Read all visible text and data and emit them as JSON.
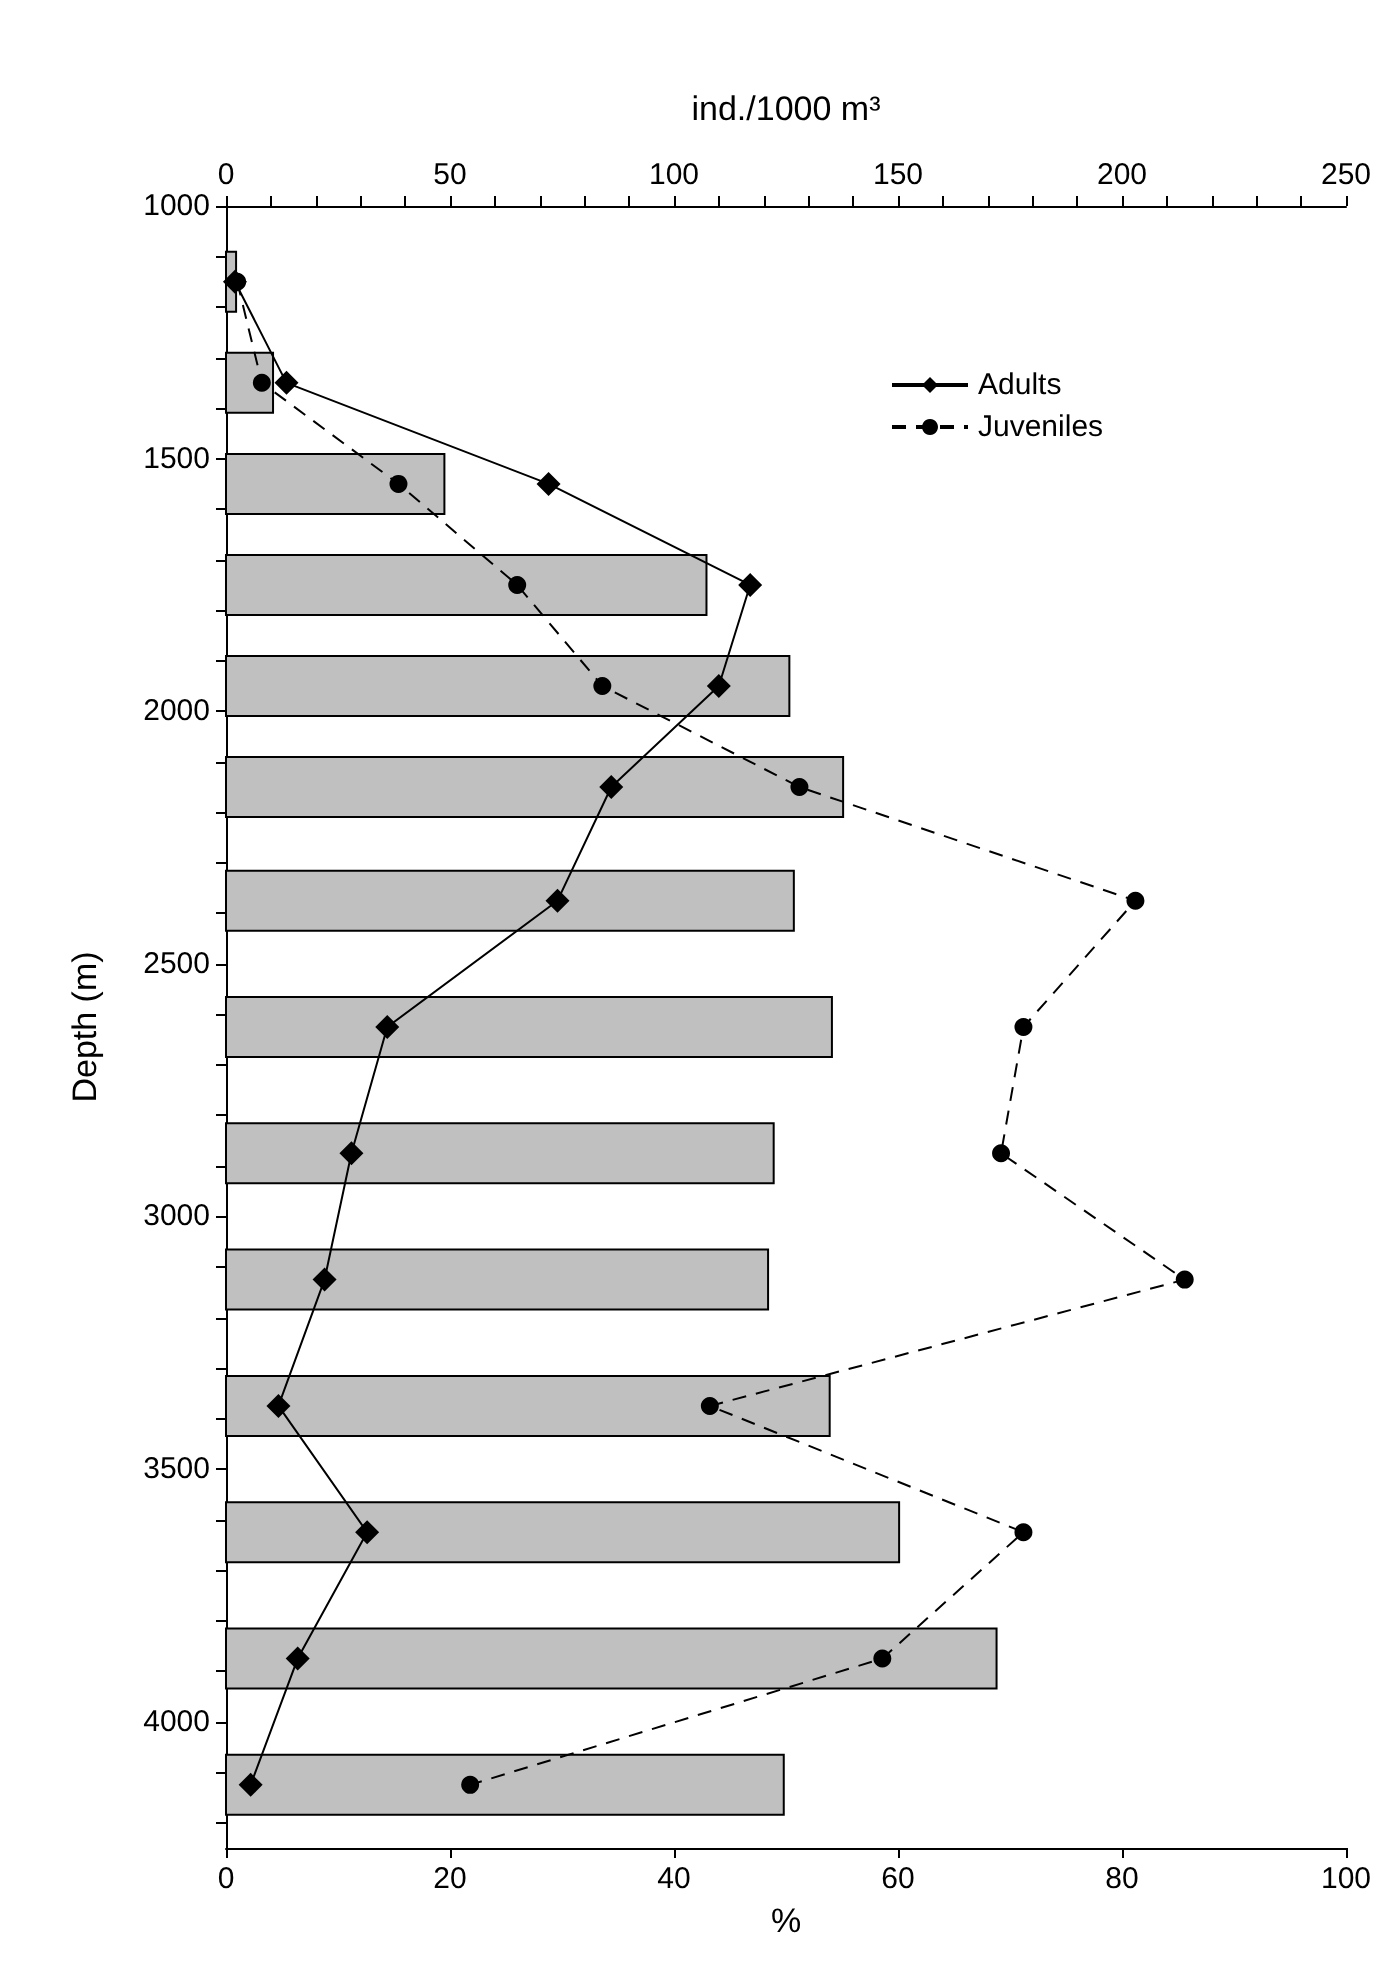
{
  "chart_data": {
    "type": "bar",
    "orientation": "horizontal",
    "xlabel": "%",
    "x2label": "ind./1000 m³",
    "ylabel": "Depth (m)",
    "x": [
      1150,
      1350,
      1550,
      1750,
      1950,
      2150,
      2375,
      2625,
      2875,
      3125,
      3375,
      3625,
      3875,
      4125
    ],
    "xlim": [
      0,
      100
    ],
    "xticks": [
      0,
      20,
      40,
      60,
      80,
      100
    ],
    "x2lim": [
      0,
      250
    ],
    "x2ticks": [
      0,
      {
        "value": 10,
        "label": null
      },
      {
        "value": 20,
        "label": null
      },
      {
        "value": 30,
        "label": null
      },
      {
        "value": 40,
        "label": null
      },
      50,
      {
        "value": 60,
        "label": null
      },
      {
        "value": 70,
        "label": null
      },
      {
        "value": 80,
        "label": null
      },
      {
        "value": 90,
        "label": null
      },
      100,
      {
        "value": 110,
        "label": null
      },
      {
        "value": 120,
        "label": null
      },
      {
        "value": 130,
        "label": null
      },
      {
        "value": 140,
        "label": null
      },
      150,
      {
        "value": 160,
        "label": null
      },
      {
        "value": 170,
        "label": null
      },
      {
        "value": 180,
        "label": null
      },
      {
        "value": 190,
        "label": null
      },
      200,
      {
        "value": 210,
        "label": null
      },
      {
        "value": 220,
        "label": null
      },
      {
        "value": 230,
        "label": null
      },
      {
        "value": 240,
        "label": null
      },
      250
    ],
    "ylim": [
      4250,
      1000
    ],
    "yticks": [
      1000,
      {
        "value": 1100,
        "label": null
      },
      {
        "value": 1200,
        "label": null
      },
      {
        "value": 1300,
        "label": null
      },
      {
        "value": 1400,
        "label": null
      },
      1500,
      {
        "value": 1600,
        "label": null
      },
      {
        "value": 1700,
        "label": null
      },
      {
        "value": 1800,
        "label": null
      },
      {
        "value": 1900,
        "label": null
      },
      2000,
      {
        "value": 2100,
        "label": null
      },
      {
        "value": 2200,
        "label": null
      },
      {
        "value": 2300,
        "label": null
      },
      {
        "value": 2400,
        "label": null
      },
      2500,
      {
        "value": 2600,
        "label": null
      },
      {
        "value": 2700,
        "label": null
      },
      {
        "value": 2800,
        "label": null
      },
      {
        "value": 2900,
        "label": null
      },
      3000,
      {
        "value": 3100,
        "label": null
      },
      {
        "value": 3200,
        "label": null
      },
      {
        "value": 3300,
        "label": null
      },
      {
        "value": 3400,
        "label": null
      },
      3500,
      {
        "value": 3600,
        "label": null
      },
      {
        "value": 3700,
        "label": null
      },
      {
        "value": 3800,
        "label": null
      },
      {
        "value": 3900,
        "label": null
      },
      4000,
      {
        "value": 4100,
        "label": null
      },
      {
        "value": 4200,
        "label": null
      }
    ],
    "legend": "top right",
    "grid": false,
    "series": [
      {
        "color": "#c0c0c0",
        "values": [
          0.9,
          4.2,
          19.5,
          42.9,
          50.3,
          55.1,
          50.7,
          54.1,
          48.9,
          48.4,
          53.9,
          60.1,
          68.8,
          49.8
        ]
      },
      {
        "type": "line",
        "name": "Adults",
        "axis": "x2",
        "color": "#000000",
        "marker": "diamond",
        "line_style": "solid",
        "values": [
          2,
          13.5,
          72,
          117,
          110,
          86,
          74,
          36,
          28,
          22,
          11.7,
          31.5,
          16,
          5.5
        ]
      },
      {
        "type": "line",
        "name": "Juveniles",
        "axis": "x2",
        "color": "#000000",
        "marker": "circle",
        "line_style": "dashed",
        "values": [
          2.5,
          8,
          38.5,
          65,
          84,
          128,
          203,
          178,
          173,
          214,
          108,
          178,
          146.5,
          54.5
        ]
      }
    ]
  }
}
